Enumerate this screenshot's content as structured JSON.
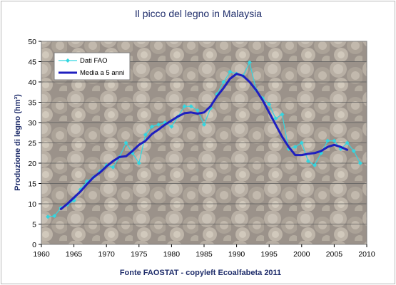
{
  "chart_data": {
    "type": "line",
    "title": "Il picco del legno in Malaysia",
    "xlabel": "Fonte FAOSTAT - copyleft Ecoalfabeta 2011",
    "ylabel": "Produzione di legno (hm³)",
    "xlim": [
      1960,
      2010
    ],
    "ylim": [
      0,
      50
    ],
    "x_ticks": [
      1960,
      1965,
      1970,
      1975,
      1980,
      1985,
      1990,
      1995,
      2000,
      2005,
      2010
    ],
    "y_ticks": [
      0,
      5,
      10,
      15,
      20,
      25,
      30,
      35,
      40,
      45,
      50
    ],
    "grid": true,
    "legend_position": "top-left",
    "series": [
      {
        "name": "Dati FAO",
        "color": "#33d6e0",
        "marker": "diamond",
        "x": [
          1961,
          1962,
          1963,
          1964,
          1965,
          1966,
          1967,
          1968,
          1969,
          1970,
          1971,
          1972,
          1973,
          1974,
          1975,
          1976,
          1977,
          1978,
          1979,
          1980,
          1981,
          1982,
          1983,
          1984,
          1985,
          1986,
          1987,
          1988,
          1989,
          1990,
          1991,
          1992,
          1993,
          1994,
          1995,
          1996,
          1997,
          1998,
          1999,
          2000,
          2001,
          2002,
          2003,
          2004,
          2005,
          2006,
          2007,
          2008,
          2009
        ],
        "y": [
          6.8,
          7.0,
          9.0,
          9.8,
          10.8,
          13.5,
          15.5,
          16.5,
          18.0,
          19.5,
          19.0,
          21.5,
          25.0,
          22.5,
          20.0,
          27.0,
          29.0,
          29.5,
          30.0,
          29.0,
          31.5,
          34.0,
          34.0,
          33.0,
          29.5,
          33.5,
          37.0,
          40.0,
          42.5,
          42.0,
          41.5,
          44.8,
          38.0,
          36.0,
          34.5,
          31.0,
          32.0,
          23.5,
          24.0,
          25.0,
          20.5,
          19.5,
          22.5,
          25.5,
          25.5,
          23.5,
          25.0,
          23.0,
          20.0
        ]
      },
      {
        "name": "Media a 5 anni",
        "color": "#1f1fbf",
        "x": [
          1963,
          1964,
          1965,
          1966,
          1967,
          1968,
          1969,
          1970,
          1971,
          1972,
          1973,
          1974,
          1975,
          1976,
          1977,
          1978,
          1979,
          1980,
          1981,
          1982,
          1983,
          1984,
          1985,
          1986,
          1987,
          1988,
          1989,
          1990,
          1991,
          1992,
          1993,
          1994,
          1995,
          1996,
          1997,
          1998,
          1999,
          2000,
          2001,
          2002,
          2003,
          2004,
          2005,
          2006,
          2007
        ],
        "y": [
          8.7,
          10.0,
          11.5,
          13.0,
          14.8,
          16.5,
          17.7,
          19.2,
          20.5,
          21.5,
          21.7,
          23.0,
          24.5,
          25.5,
          27.2,
          28.3,
          29.5,
          30.5,
          31.5,
          32.3,
          32.5,
          32.2,
          32.5,
          34.0,
          36.5,
          38.5,
          40.8,
          42.0,
          41.5,
          40.0,
          38.0,
          35.5,
          32.5,
          29.5,
          26.5,
          24.0,
          22.0,
          22.0,
          22.3,
          22.5,
          23.0,
          24.0,
          24.5,
          24.0,
          23.3
        ]
      }
    ]
  }
}
